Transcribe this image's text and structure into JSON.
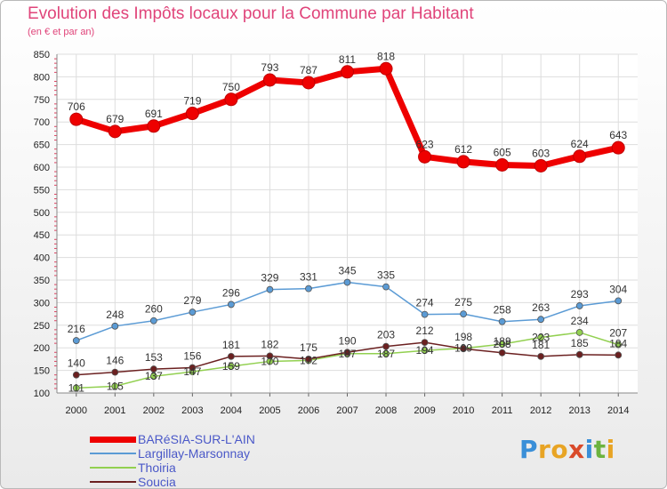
{
  "header": {
    "title": "Evolution des Impôts locaux pour la Commune par Habitant",
    "subtitle": "(en € et par an)"
  },
  "logo": {
    "letters": [
      "P",
      "r",
      "o",
      "x",
      "i",
      "t",
      "i"
    ],
    "colors": [
      "#3a8fd8",
      "#e8a424",
      "#e8a424",
      "#d94a2a",
      "#3a8fd8",
      "#6cb33f",
      "#e8a424"
    ]
  },
  "chart_data": {
    "type": "line",
    "title": "Evolution des Impôts locaux pour la Commune par Habitant",
    "ylabel": "(en € et par an)",
    "xlabel": "",
    "x": [
      "2000",
      "2001",
      "2002",
      "2003",
      "2004",
      "2005",
      "2006",
      "2007",
      "2008",
      "2009",
      "2010",
      "2011",
      "2012",
      "2013",
      "2014"
    ],
    "ylim": [
      100,
      850
    ],
    "yticks": [
      100,
      150,
      200,
      250,
      300,
      350,
      400,
      450,
      500,
      550,
      600,
      650,
      700,
      750,
      800,
      850
    ],
    "grid": true,
    "legend_position": "bottom-left",
    "series": [
      {
        "name": "BARéSIA-SUR-L'AIN",
        "color": "#ee0000",
        "width": 7,
        "values": [
          706,
          679,
          691,
          719,
          750,
          793,
          787,
          811,
          818,
          623,
          612,
          605,
          603,
          624,
          643
        ]
      },
      {
        "name": "Largillay-Marsonnay",
        "color": "#5b9bd5",
        "width": 1.5,
        "values": [
          216,
          248,
          260,
          279,
          296,
          329,
          331,
          345,
          335,
          274,
          275,
          258,
          263,
          293,
          304
        ]
      },
      {
        "name": "Thoiria",
        "color": "#92d050",
        "width": 1.5,
        "values": [
          111,
          115,
          137,
          147,
          159,
          170,
          172,
          187,
          187,
          194,
          199,
          208,
          223,
          234,
          207
        ]
      },
      {
        "name": "Soucia",
        "color": "#6b2020",
        "width": 1.5,
        "values": [
          140,
          146,
          153,
          156,
          181,
          182,
          175,
          190,
          203,
          212,
          198,
          189,
          181,
          185,
          184
        ]
      }
    ]
  }
}
